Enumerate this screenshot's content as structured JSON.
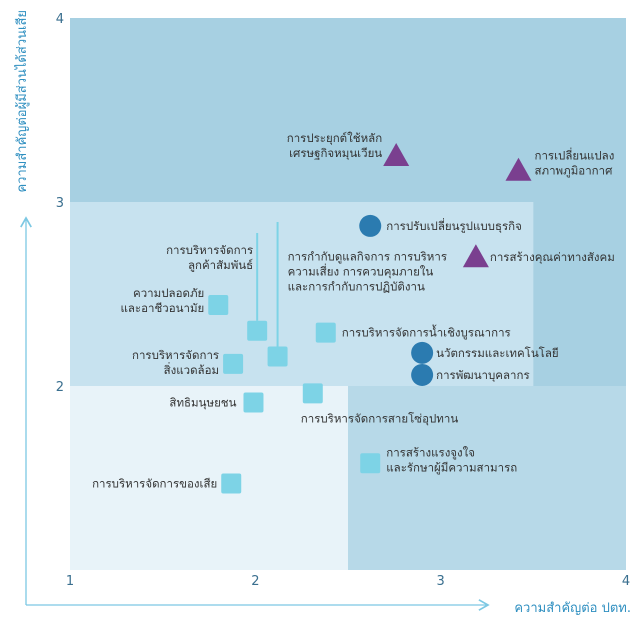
{
  "chart_data": {
    "type": "scatter",
    "title": "",
    "xlabel": "ความสำคัญต่อ ปตท.",
    "ylabel": "ความสำคัญต่อผู้มีส่วนได้ส่วนเสีย",
    "xlim": [
      1,
      4
    ],
    "ylim": [
      1,
      4
    ],
    "x_ticks": [
      "1",
      "2",
      "3",
      "4"
    ],
    "y_ticks": [
      "2",
      "3",
      "4"
    ],
    "colors": {
      "square": "#7dd3e6",
      "circle": "#2b7bb0",
      "triangle": "#7a3f8f",
      "zone_low": "#e8f3f9",
      "zone_mid": "#c7e2ef",
      "zone_high": "#a7d0e2",
      "text": "#333333",
      "axis": "#2f8fc0"
    },
    "points": [
      {
        "label": "การประยุกต์ใช้หลัก\nเศรษฐกิจหมุนเวียน",
        "x": 2.76,
        "y": 3.25,
        "shape": "triangle"
      },
      {
        "label": "การเปลี่ยนแปลง\nสภาพภูมิอากาศ",
        "x": 3.42,
        "y": 3.17,
        "shape": "triangle"
      },
      {
        "label": "การสร้างคุณค่าทางสังคม",
        "x": 3.19,
        "y": 2.7,
        "shape": "triangle"
      },
      {
        "label": "การปรับเปลี่ยนรูปแบบธุรกิจ",
        "x": 2.62,
        "y": 2.87,
        "shape": "circle"
      },
      {
        "label": "นวัตกรรมและเทคโนโลยี",
        "x": 2.9,
        "y": 2.18,
        "shape": "circle"
      },
      {
        "label": "การพัฒนาบุคลากร",
        "x": 2.9,
        "y": 2.06,
        "shape": "circle"
      },
      {
        "label": "ความปลอดภัย\nและอาชีวอนามัย",
        "x": 1.8,
        "y": 2.44,
        "shape": "square"
      },
      {
        "label": "การบริหารจัดการ\nลูกค้าสัมพันธ์",
        "x": 2.01,
        "y": 2.3,
        "shape": "square"
      },
      {
        "label": "การกำกับดูแลกิจการ การบริหาร\nความเสี่ยง การควบคุมภายใน\nและการกำกับการปฏิบัติงาน",
        "x": 2.12,
        "y": 2.16,
        "shape": "square"
      },
      {
        "label": "การบริหารจัดการน้ำเชิงบูรณาการ",
        "x": 2.38,
        "y": 2.29,
        "shape": "square"
      },
      {
        "label": "การบริหารจัดการ\nสิ่งแวดล้อม",
        "x": 1.88,
        "y": 2.12,
        "shape": "square"
      },
      {
        "label": "การบริหารจัดการสายโซ่อุปทาน",
        "x": 2.31,
        "y": 1.96,
        "shape": "square"
      },
      {
        "label": "สิทธิมนุษยชน",
        "x": 1.99,
        "y": 1.91,
        "shape": "square"
      },
      {
        "label": "การสร้างแรงจูงใจ\nและรักษาผู้มีความสามารถ",
        "x": 2.62,
        "y": 1.58,
        "shape": "square"
      },
      {
        "label": "การบริหารจัดการของเสีย",
        "x": 1.87,
        "y": 1.47,
        "shape": "square"
      }
    ]
  }
}
